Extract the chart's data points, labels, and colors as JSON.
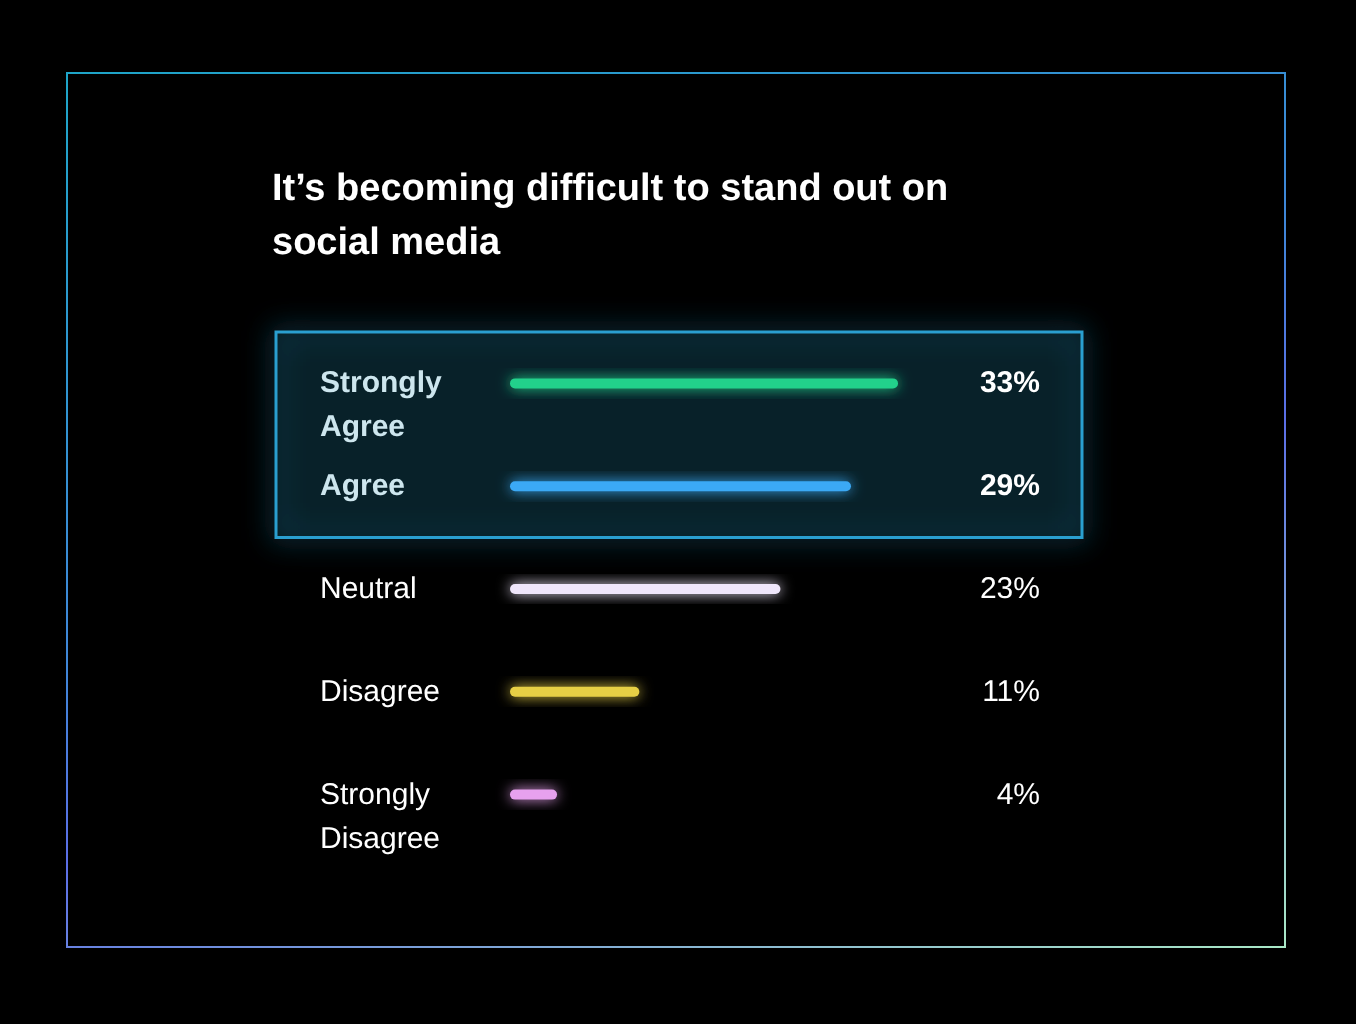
{
  "chart_data": {
    "type": "bar",
    "orientation": "horizontal",
    "title": "It’s becoming difficult to stand out on social media",
    "categories": [
      "Strongly Agree",
      "Agree",
      "Neutral",
      "Disagree",
      "Strongly Disagree"
    ],
    "values": [
      33,
      29,
      23,
      11,
      4
    ],
    "colors": [
      "#22d18b",
      "#3ba9f5",
      "#efe6fb",
      "#e6cf45",
      "#e7a1ee"
    ],
    "value_labels": [
      "33%",
      "29%",
      "23%",
      "11%",
      "4%"
    ],
    "bands": [
      {
        "axis": "y",
        "from": "Strongly Agree",
        "to": "Agree",
        "color": "#2b9fd0"
      }
    ]
  }
}
